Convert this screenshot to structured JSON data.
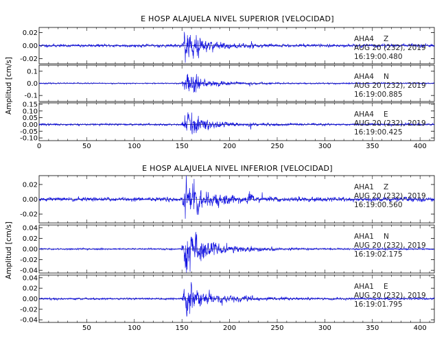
{
  "chart_data": [
    {
      "type": "line",
      "title": "E HOSP ALAJUELA NIVEL SUPERIOR [VELOCIDAD]",
      "ylabel": "Amplitud [cm/s]",
      "xlim": [
        0,
        415
      ],
      "x_ticks": [
        "0",
        "50",
        "100",
        "150",
        "200",
        "250",
        "300",
        "350",
        "400"
      ],
      "x_tick_values": [
        0,
        50,
        100,
        150,
        200,
        250,
        300,
        350,
        400
      ],
      "traces": [
        {
          "station": "AHA4",
          "component": "Z",
          "date": "AUG 20 (232), 2019",
          "time": "16:19:00.480",
          "ylim": [
            -0.028,
            0.028
          ],
          "y_ticks": [
            "0.02",
            "0.00",
            "-0.02"
          ],
          "y_tick_values": [
            0.02,
            0.0,
            -0.02
          ],
          "noise": 0.0018,
          "peak": 0.026,
          "onset": 150,
          "peak_time": 155,
          "decay": 0.06,
          "seed": 11
        },
        {
          "station": "AHA4",
          "component": "N",
          "date": "AUG 20 (232), 2019",
          "time": "16:19:00.885",
          "ylim": [
            -0.15,
            0.15
          ],
          "y_ticks": [
            "0.1",
            "0.0",
            "-0.1"
          ],
          "y_tick_values": [
            0.1,
            0.0,
            -0.1
          ],
          "noise": 0.004,
          "peak": 0.1,
          "onset": 150,
          "peak_time": 157,
          "decay": 0.06,
          "seed": 23
        },
        {
          "station": "AHA4",
          "component": "E",
          "date": "AUG 20 (232), 2019",
          "time": "16:19:00.425",
          "ylim": [
            -0.12,
            0.16
          ],
          "y_ticks": [
            "0.15",
            "0.10",
            "0.05",
            "0.00",
            "-0.05",
            "-0.10"
          ],
          "y_tick_values": [
            0.15,
            0.1,
            0.05,
            0.0,
            -0.05,
            -0.1
          ],
          "noise": 0.006,
          "peak": 0.1,
          "onset": 150,
          "peak_time": 156,
          "decay": 0.06,
          "seed": 37
        }
      ]
    },
    {
      "type": "line",
      "title": "E HOSP ALAJUELA NIVEL INFERIOR [VELOCIDAD]",
      "ylabel": "Amplitud [cm/s]",
      "xlim": [
        0,
        415
      ],
      "x_ticks": [
        "50",
        "100",
        "150",
        "200",
        "250",
        "300",
        "350",
        "400"
      ],
      "x_tick_values": [
        50,
        100,
        150,
        200,
        250,
        300,
        350,
        400
      ],
      "traces": [
        {
          "station": "AHA1",
          "component": "Z",
          "date": "AUG 20 (232), 2019",
          "time": "16:19:00.560",
          "ylim": [
            -0.032,
            0.032
          ],
          "y_ticks": [
            "0.02",
            "0.00",
            "-0.02"
          ],
          "y_tick_values": [
            0.02,
            0.0,
            -0.02
          ],
          "noise": 0.0022,
          "peak": 0.029,
          "onset": 150,
          "peak_time": 155,
          "decay": 0.05,
          "seed": 51
        },
        {
          "station": "AHA1",
          "component": "N",
          "date": "AUG 20 (232), 2019",
          "time": "16:19:02.175",
          "ylim": [
            -0.045,
            0.045
          ],
          "y_ticks": [
            "0.04",
            "0.02",
            "0.00",
            "-0.02",
            "-0.04"
          ],
          "y_tick_values": [
            0.04,
            0.02,
            0.0,
            -0.02,
            -0.04
          ],
          "noise": 0.0012,
          "peak": 0.042,
          "onset": 150,
          "peak_time": 155,
          "decay": 0.045,
          "seed": 63
        },
        {
          "station": "AHA1",
          "component": "E",
          "date": "AUG 20 (232), 2019",
          "time": "16:19:01.795",
          "ylim": [
            -0.045,
            0.045
          ],
          "y_ticks": [
            "0.04",
            "0.02",
            "0.00",
            "-0.02",
            "-0.04"
          ],
          "y_tick_values": [
            0.04,
            0.02,
            0.0,
            -0.02,
            -0.04
          ],
          "noise": 0.0015,
          "peak": 0.036,
          "onset": 150,
          "peak_time": 156,
          "decay": 0.05,
          "seed": 79
        }
      ]
    }
  ],
  "colors": {
    "trace": "#1010e0",
    "axes": "#000000",
    "info_text": "#222222"
  }
}
